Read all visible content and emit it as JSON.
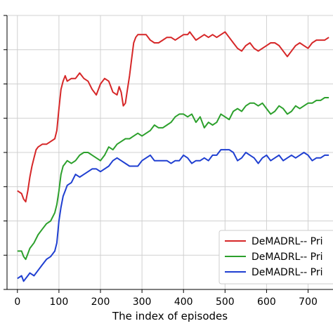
{
  "chart_data": {
    "type": "line",
    "xlabel": "The index of episodes",
    "ylabel": "",
    "title": "",
    "xlim": [
      -25,
      760
    ],
    "ylim": [
      0,
      1
    ],
    "x_ticks": [
      0,
      100,
      200,
      300,
      400,
      500,
      600,
      700
    ],
    "x_tick_labels": [
      "0",
      "100",
      "200",
      "300",
      "400",
      "500",
      "600",
      "700"
    ],
    "y_ticks": [
      0.0,
      0.125,
      0.25,
      0.375,
      0.5,
      0.625,
      0.75,
      0.875,
      1.0
    ],
    "y_tick_labels": [
      "",
      "",
      "",
      "",
      "",
      "",
      "",
      "",
      ""
    ],
    "grid": true,
    "legend_position": "lower-right",
    "series": [
      {
        "name": "DeMADRL-- Pri",
        "color": "#d62728",
        "x": [
          0,
          10,
          15,
          20,
          25,
          30,
          35,
          40,
          45,
          50,
          60,
          70,
          80,
          90,
          95,
          100,
          105,
          110,
          115,
          120,
          130,
          140,
          150,
          160,
          170,
          180,
          190,
          200,
          210,
          220,
          225,
          230,
          240,
          245,
          250,
          255,
          260,
          265,
          270,
          275,
          280,
          285,
          290,
          300,
          310,
          320,
          330,
          340,
          350,
          360,
          370,
          380,
          390,
          400,
          410,
          415,
          420,
          430,
          440,
          450,
          460,
          470,
          480,
          490,
          500,
          510,
          520,
          530,
          540,
          550,
          560,
          570,
          580,
          590,
          600,
          610,
          620,
          630,
          640,
          650,
          660,
          670,
          680,
          690,
          700,
          710,
          720,
          730,
          740,
          750
        ],
        "values": [
          0.36,
          0.35,
          0.33,
          0.32,
          0.36,
          0.41,
          0.45,
          0.48,
          0.51,
          0.52,
          0.53,
          0.53,
          0.54,
          0.55,
          0.58,
          0.66,
          0.73,
          0.76,
          0.78,
          0.76,
          0.77,
          0.77,
          0.79,
          0.77,
          0.76,
          0.73,
          0.71,
          0.75,
          0.77,
          0.76,
          0.74,
          0.72,
          0.71,
          0.74,
          0.72,
          0.67,
          0.68,
          0.73,
          0.78,
          0.84,
          0.9,
          0.92,
          0.93,
          0.93,
          0.93,
          0.91,
          0.9,
          0.9,
          0.91,
          0.92,
          0.92,
          0.91,
          0.92,
          0.93,
          0.93,
          0.94,
          0.93,
          0.91,
          0.92,
          0.93,
          0.92,
          0.93,
          0.92,
          0.93,
          0.94,
          0.92,
          0.9,
          0.88,
          0.87,
          0.89,
          0.9,
          0.88,
          0.87,
          0.88,
          0.89,
          0.9,
          0.9,
          0.89,
          0.87,
          0.85,
          0.87,
          0.89,
          0.9,
          0.89,
          0.88,
          0.9,
          0.91,
          0.91,
          0.91,
          0.92
        ]
      },
      {
        "name": "DeMADRL-- Pri",
        "color": "#2ca02c",
        "x": [
          0,
          10,
          15,
          20,
          25,
          30,
          40,
          50,
          60,
          70,
          80,
          90,
          95,
          100,
          105,
          110,
          115,
          120,
          130,
          140,
          150,
          160,
          170,
          180,
          190,
          200,
          210,
          220,
          230,
          240,
          250,
          260,
          270,
          280,
          290,
          300,
          310,
          320,
          330,
          340,
          350,
          360,
          370,
          380,
          390,
          400,
          410,
          420,
          430,
          440,
          450,
          460,
          470,
          480,
          490,
          500,
          510,
          520,
          530,
          540,
          550,
          560,
          570,
          580,
          590,
          600,
          610,
          620,
          630,
          640,
          650,
          660,
          670,
          680,
          690,
          700,
          710,
          720,
          730,
          740,
          750
        ],
        "values": [
          0.14,
          0.14,
          0.12,
          0.11,
          0.13,
          0.15,
          0.17,
          0.2,
          0.22,
          0.24,
          0.25,
          0.28,
          0.31,
          0.36,
          0.42,
          0.45,
          0.46,
          0.47,
          0.46,
          0.47,
          0.49,
          0.5,
          0.5,
          0.49,
          0.48,
          0.47,
          0.49,
          0.52,
          0.51,
          0.53,
          0.54,
          0.55,
          0.55,
          0.56,
          0.57,
          0.56,
          0.57,
          0.58,
          0.6,
          0.59,
          0.59,
          0.6,
          0.61,
          0.63,
          0.64,
          0.64,
          0.63,
          0.64,
          0.61,
          0.63,
          0.59,
          0.61,
          0.6,
          0.61,
          0.64,
          0.63,
          0.62,
          0.65,
          0.66,
          0.65,
          0.67,
          0.68,
          0.68,
          0.67,
          0.68,
          0.66,
          0.64,
          0.65,
          0.67,
          0.66,
          0.64,
          0.65,
          0.67,
          0.66,
          0.67,
          0.68,
          0.68,
          0.69,
          0.69,
          0.7,
          0.7
        ]
      },
      {
        "name": "DeMADRL-- Pri",
        "color": "#1f3fd1",
        "x": [
          0,
          10,
          15,
          20,
          25,
          30,
          40,
          50,
          60,
          70,
          80,
          90,
          95,
          100,
          105,
          110,
          115,
          120,
          130,
          140,
          150,
          160,
          170,
          180,
          190,
          200,
          210,
          220,
          230,
          240,
          250,
          260,
          270,
          280,
          290,
          300,
          310,
          320,
          330,
          340,
          350,
          360,
          370,
          380,
          390,
          400,
          410,
          420,
          430,
          440,
          450,
          460,
          470,
          480,
          490,
          500,
          510,
          520,
          530,
          540,
          550,
          560,
          570,
          580,
          590,
          600,
          610,
          620,
          630,
          640,
          650,
          660,
          670,
          680,
          690,
          700,
          710,
          720,
          730,
          740,
          750
        ],
        "values": [
          0.04,
          0.05,
          0.03,
          0.04,
          0.05,
          0.06,
          0.05,
          0.07,
          0.09,
          0.11,
          0.12,
          0.14,
          0.17,
          0.25,
          0.3,
          0.34,
          0.36,
          0.38,
          0.39,
          0.42,
          0.41,
          0.42,
          0.43,
          0.44,
          0.44,
          0.43,
          0.44,
          0.45,
          0.47,
          0.48,
          0.47,
          0.46,
          0.45,
          0.45,
          0.45,
          0.47,
          0.48,
          0.49,
          0.47,
          0.47,
          0.47,
          0.47,
          0.46,
          0.47,
          0.47,
          0.49,
          0.48,
          0.46,
          0.47,
          0.47,
          0.48,
          0.47,
          0.49,
          0.49,
          0.51,
          0.51,
          0.51,
          0.5,
          0.47,
          0.48,
          0.5,
          0.49,
          0.48,
          0.46,
          0.48,
          0.49,
          0.47,
          0.48,
          0.49,
          0.47,
          0.48,
          0.49,
          0.48,
          0.49,
          0.5,
          0.49,
          0.47,
          0.48,
          0.48,
          0.49,
          0.49
        ]
      }
    ]
  }
}
